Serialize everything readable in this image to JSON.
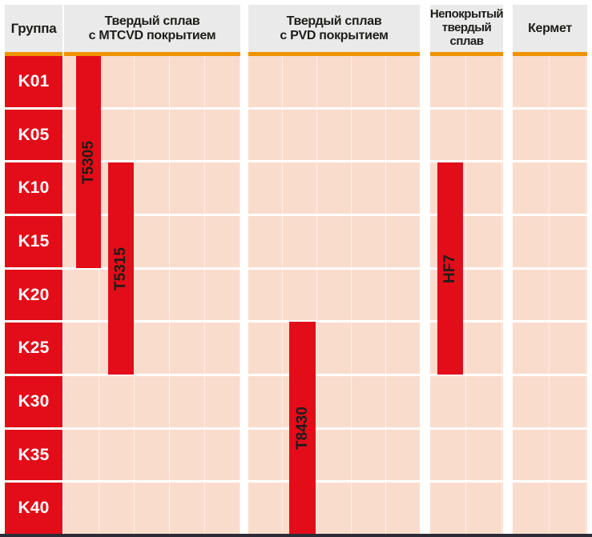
{
  "header": {
    "group_label": "Группа",
    "columns": [
      {
        "label": "Твердый сплав\nс MTCVD покрытием"
      },
      {
        "label": "Твердый сплав\nс PVD покрытием"
      },
      {
        "label": "Непокрытый\nтвердый\nсплав"
      },
      {
        "label": "Кермет"
      }
    ]
  },
  "chart_data": {
    "type": "bar",
    "subtype": "grade-application-range-chart",
    "row_axis": [
      "K01",
      "K05",
      "K10",
      "K15",
      "K20",
      "K25",
      "K30",
      "K35",
      "K40"
    ],
    "columns": [
      "Твердый сплав с MTCVD покрытием",
      "Твердый сплав с PVD покрытием",
      "Непокрытый твердый сплав",
      "Кермет"
    ],
    "bars": [
      {
        "grade": "T5305",
        "column": "Твердый сплав с MTCVD покрытием",
        "from": "K01",
        "to": "K15"
      },
      {
        "grade": "T5315",
        "column": "Твердый сплав с MTCVD покрытием",
        "from": "K10",
        "to": "K25"
      },
      {
        "grade": "T8430",
        "column": "Твердый сплав с PVD покрытием",
        "from": "K25",
        "to": "K40"
      },
      {
        "grade": "HF7",
        "column": "Непокрытый твердый сплав",
        "from": "K10",
        "to": "K25"
      }
    ],
    "legend": "none",
    "grid": true
  },
  "colors": {
    "bar_red": "#e20d18",
    "cell_pink": "#fadccd",
    "header_gray": "#eaeaea",
    "accent_orange": "#f09200",
    "text_dark": "#1d1d1b",
    "row_label_white": "#ffffff",
    "bottom_border": "#2c2c36"
  }
}
